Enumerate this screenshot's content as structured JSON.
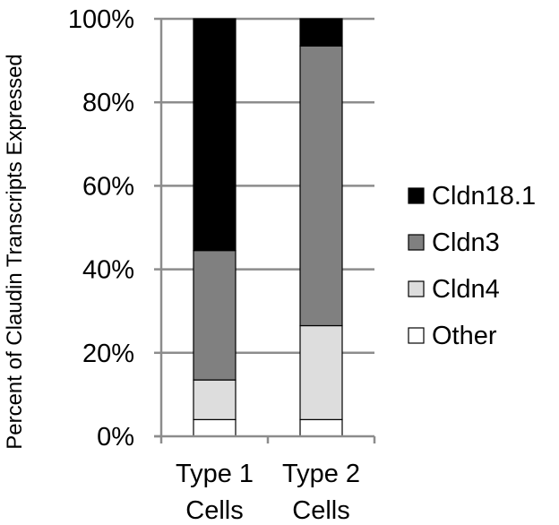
{
  "chart_data": {
    "type": "bar",
    "stacked": true,
    "categories": [
      [
        "Type 1",
        "Cells"
      ],
      [
        "Type 2",
        "Cells"
      ]
    ],
    "ylabel": "Percent of Claudin Transcripts Expressed",
    "ylim": [
      0,
      100
    ],
    "y_ticks": [
      "0%",
      "20%",
      "40%",
      "60%",
      "80%",
      "100%"
    ],
    "grid": true,
    "legend_position": "right",
    "series": [
      {
        "name": "Other",
        "color": "#ffffff",
        "values": [
          4,
          4
        ]
      },
      {
        "name": "Cldn4",
        "color": "#dddddd",
        "values": [
          9.5,
          22.5
        ]
      },
      {
        "name": "Cldn3",
        "color": "#808080",
        "values": [
          31,
          67
        ]
      },
      {
        "name": "Cldn18.1",
        "color": "#000000",
        "values": [
          55.5,
          6.5
        ]
      }
    ],
    "legend_order": [
      "Cldn18.1",
      "Cldn3",
      "Cldn4",
      "Other"
    ]
  }
}
